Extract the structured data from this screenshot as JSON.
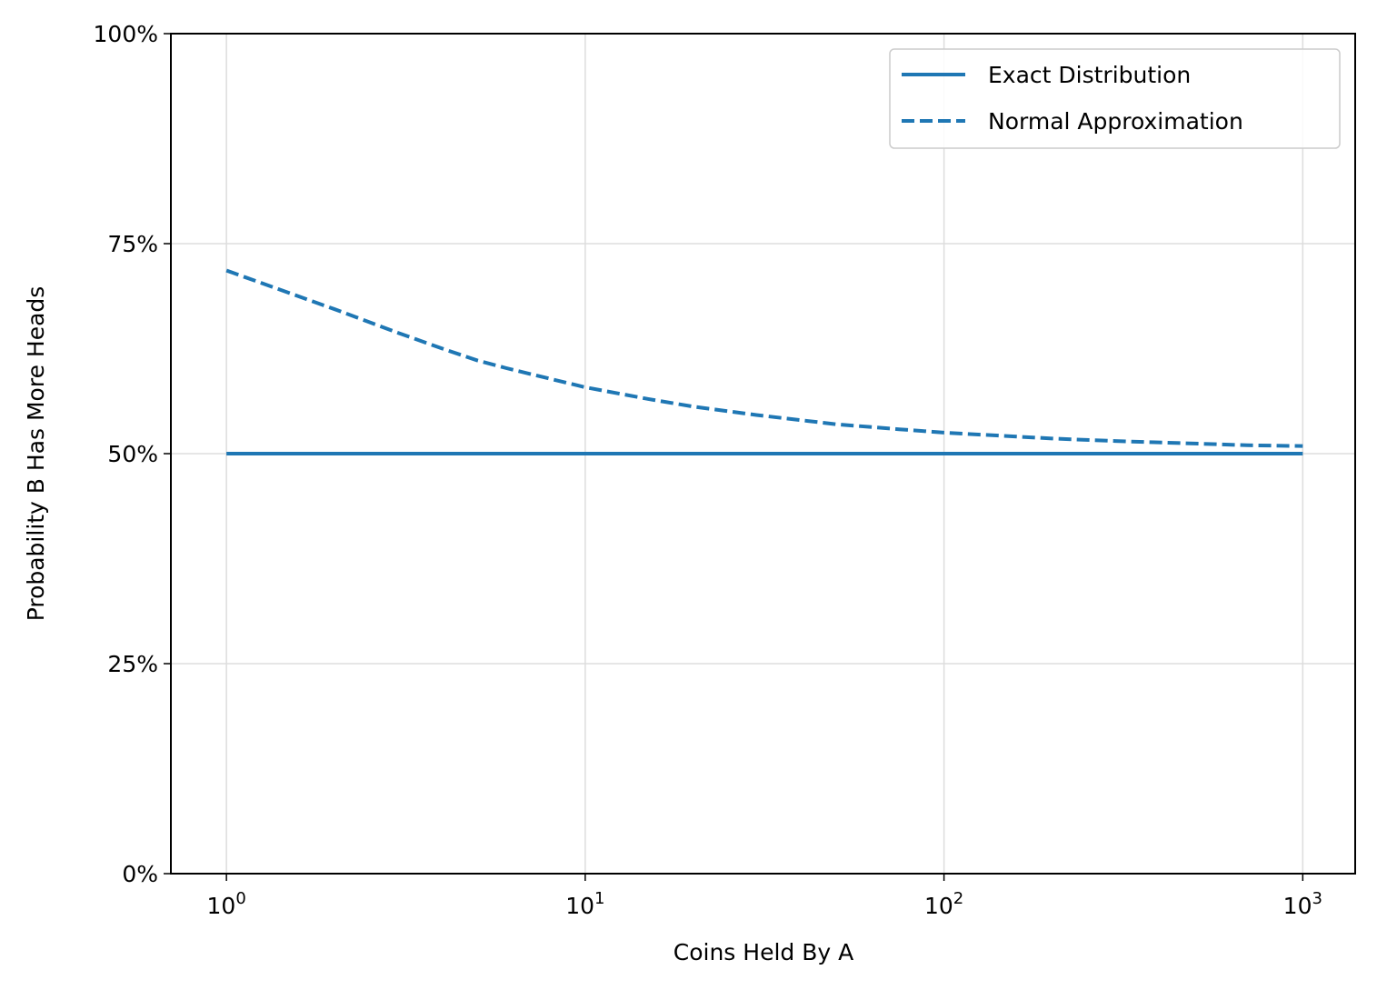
{
  "chart_data": {
    "type": "line",
    "xlabel": "Coins Held By A",
    "ylabel": "Probability B Has More Heads",
    "x_scale": "log",
    "xlim": [
      0.7,
      1400
    ],
    "ylim": [
      0,
      1
    ],
    "x_ticks": [
      {
        "value": 1,
        "base": "10",
        "exp": "0"
      },
      {
        "value": 10,
        "base": "10",
        "exp": "1"
      },
      {
        "value": 100,
        "base": "10",
        "exp": "2"
      },
      {
        "value": 1000,
        "base": "10",
        "exp": "3"
      }
    ],
    "y_ticks": [
      {
        "value": 0,
        "label": "0%"
      },
      {
        "value": 0.25,
        "label": "25%"
      },
      {
        "value": 0.5,
        "label": "50%"
      },
      {
        "value": 0.75,
        "label": "75%"
      },
      {
        "value": 1,
        "label": "100%"
      }
    ],
    "grid": true,
    "legend_position": "top-right",
    "series": [
      {
        "name": "Exact Distribution",
        "style": "solid",
        "color": "#1f77b4",
        "x": [
          1,
          1000
        ],
        "y": [
          0.5,
          0.5
        ]
      },
      {
        "name": "Normal Approximation",
        "style": "dashed",
        "color": "#1f77b4",
        "x": [
          1,
          2,
          3,
          4,
          5,
          6,
          8,
          10,
          15,
          20,
          30,
          50,
          75,
          100,
          200,
          300,
          500,
          700,
          1000
        ],
        "y": [
          0.718,
          0.672,
          0.644,
          0.625,
          0.611,
          0.602,
          0.589,
          0.579,
          0.565,
          0.556,
          0.546,
          0.535,
          0.529,
          0.525,
          0.518,
          0.515,
          0.512,
          0.51,
          0.509
        ]
      }
    ]
  }
}
